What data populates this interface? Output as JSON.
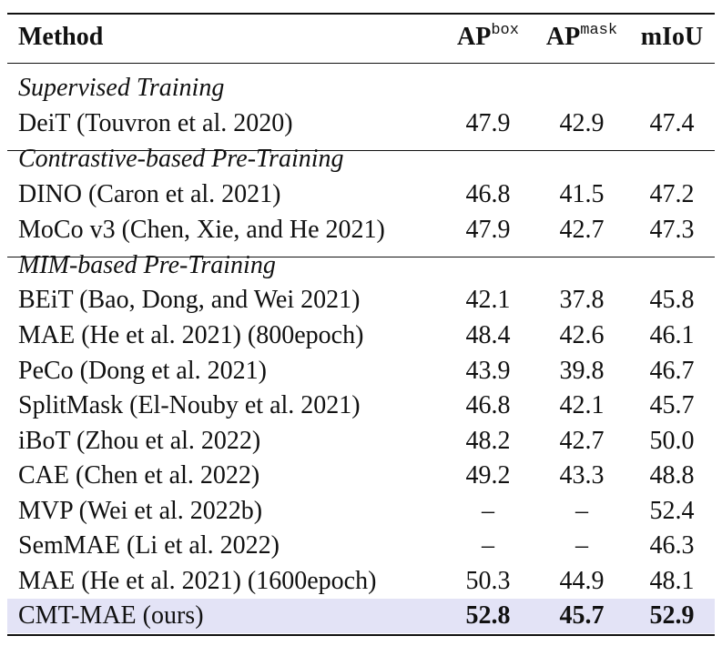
{
  "header": {
    "method": "Method",
    "ap_box": "AP",
    "ap_box_sup": "box",
    "ap_mask": "AP",
    "ap_mask_sup": "mask",
    "miou": "mIoU"
  },
  "sections": [
    {
      "title": "Supervised Training",
      "rows": [
        {
          "method": "DeiT (Touvron et al. 2020)",
          "ap_box": "47.9",
          "ap_mask": "42.9",
          "miou": "47.4"
        }
      ]
    },
    {
      "title": "Contrastive-based Pre-Training",
      "rows": [
        {
          "method": "DINO (Caron et al. 2021)",
          "ap_box": "46.8",
          "ap_mask": "41.5",
          "miou": "47.2"
        },
        {
          "method": "MoCo v3 (Chen, Xie, and He 2021)",
          "ap_box": "47.9",
          "ap_mask": "42.7",
          "miou": "47.3"
        }
      ]
    },
    {
      "title": "MIM-based Pre-Training",
      "rows": [
        {
          "method": "BEiT (Bao, Dong, and Wei 2021)",
          "ap_box": "42.1",
          "ap_mask": "37.8",
          "miou": "45.8"
        },
        {
          "method": "MAE (He et al. 2021) (800epoch)",
          "ap_box": "48.4",
          "ap_mask": "42.6",
          "miou": "46.1"
        },
        {
          "method": "PeCo (Dong et al. 2021)",
          "ap_box": "43.9",
          "ap_mask": "39.8",
          "miou": "46.7"
        },
        {
          "method": "SplitMask (El-Nouby et al. 2021)",
          "ap_box": "46.8",
          "ap_mask": "42.1",
          "miou": "45.7"
        },
        {
          "method": "iBoT (Zhou et al. 2022)",
          "ap_box": "48.2",
          "ap_mask": "42.7",
          "miou": "50.0"
        },
        {
          "method": "CAE (Chen et al. 2022)",
          "ap_box": "49.2",
          "ap_mask": "43.3",
          "miou": "48.8"
        },
        {
          "method": "MVP (Wei et al. 2022b)",
          "ap_box": "–",
          "ap_mask": "–",
          "miou": "52.4"
        },
        {
          "method": "SemMAE (Li et al. 2022)",
          "ap_box": "–",
          "ap_mask": "–",
          "miou": "46.3"
        },
        {
          "method": "MAE (He et al. 2021) (1600epoch)",
          "ap_box": "50.3",
          "ap_mask": "44.9",
          "miou": "48.1"
        }
      ]
    }
  ],
  "ours": {
    "method": "CMT-MAE (ours)",
    "ap_box": "52.8",
    "ap_mask": "45.7",
    "miou": "52.9"
  },
  "colors": {
    "highlight_row": "#e3e3f6",
    "rule": "#111111"
  }
}
